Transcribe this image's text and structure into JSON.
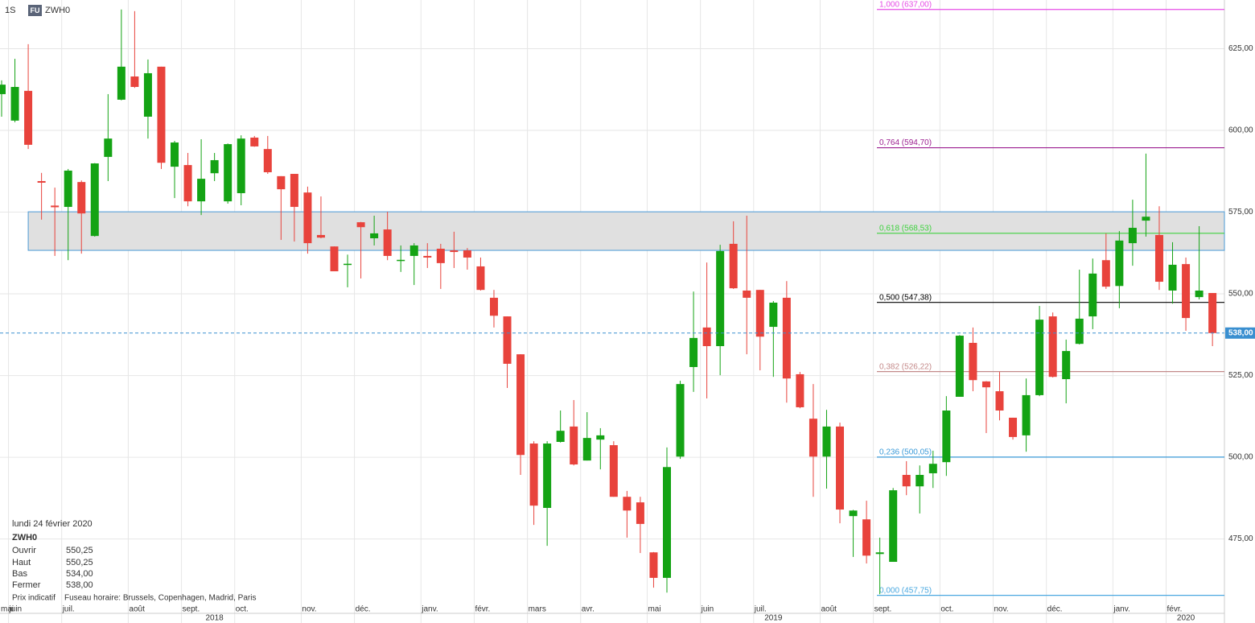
{
  "header": {
    "period": "1S",
    "badge": "FU",
    "symbol": "ZWH0"
  },
  "info": {
    "date": "lundi 24 février 2020",
    "symbol": "ZWH0",
    "rows": [
      [
        "Ouvrir",
        "550,25"
      ],
      [
        "Haut",
        "550,25"
      ],
      [
        "Bas",
        "534,00"
      ],
      [
        "Fermer",
        "538,00"
      ]
    ],
    "note": "Prix indicatif",
    "timezone": "Fuseau horaire: Brussels, Copenhagen, Madrid, Paris"
  },
  "chart_data": {
    "type": "candlestick",
    "categories": [
      "mai",
      "juin",
      null,
      null,
      null,
      "juil.",
      null,
      null,
      null,
      null,
      "août",
      null,
      null,
      null,
      "sept.",
      null,
      null,
      null,
      "oct.",
      null,
      null,
      null,
      null,
      "nov.",
      null,
      null,
      null,
      "déc.",
      null,
      null,
      null,
      null,
      "janv.",
      null,
      null,
      null,
      "févr.",
      null,
      null,
      null,
      "mars",
      null,
      null,
      null,
      "avr.",
      null,
      null,
      null,
      null,
      "mai",
      null,
      null,
      null,
      "juin",
      null,
      null,
      null,
      "juil.",
      null,
      null,
      null,
      null,
      "août",
      null,
      null,
      null,
      "sept.",
      null,
      null,
      null,
      null,
      "oct.",
      null,
      null,
      null,
      "nov.",
      null,
      null,
      null,
      "déc.",
      null,
      null,
      null,
      null,
      "janv.",
      null,
      null,
      null,
      "févr.",
      null,
      null,
      null
    ],
    "year_ticks": [
      {
        "value": 16,
        "label": "2018"
      },
      {
        "value": 58,
        "label": "2019"
      },
      {
        "value": 89,
        "label": "2020"
      }
    ],
    "open": [
      611.1,
      603,
      612.1,
      584.5,
      577,
      576.6,
      584.2,
      567.7,
      591.9,
      609.4,
      616.5,
      604.2,
      619.5,
      588.9,
      589.4,
      578.3,
      586.9,
      578.3,
      580.8,
      597.8,
      594.3,
      586,
      586.7,
      581,
      568,
      564.5,
      559,
      571.9,
      567,
      569.7,
      560.2,
      561.6,
      561.6,
      563.8,
      563.3,
      563.3,
      558.4,
      548.8,
      543.1,
      531.5,
      504.2,
      484.5,
      504.7,
      509.4,
      499,
      505.4,
      503.7,
      487.9,
      486.2,
      470.9,
      463.1,
      500.2,
      527.6,
      539.7,
      534,
      565.3,
      551,
      551.2,
      539.9,
      548.8,
      525.4,
      511.8,
      500.2,
      509.4,
      482,
      481,
      470.4,
      468,
      494.6,
      491.1,
      495.1,
      498.5,
      518.5,
      535,
      523.2,
      520.2,
      512.1,
      506.7,
      519,
      543.1,
      523.9,
      534.7,
      543.1,
      560.3,
      552.4,
      565.5,
      572.4,
      568,
      551,
      559.1,
      549,
      550.25
    ],
    "high": [
      615.3,
      621.9,
      626.4,
      587,
      582.5,
      588.2,
      584.7,
      590,
      611.1,
      637,
      636.5,
      621.7,
      619.5,
      596.8,
      593.1,
      597.3,
      593.1,
      596,
      598.5,
      598.3,
      598.3,
      586,
      586.7,
      582.8,
      579.8,
      564.5,
      562,
      572,
      573.9,
      575.1,
      564.8,
      565.5,
      565.5,
      565.3,
      569,
      564,
      561.1,
      551.2,
      543.1,
      531.5,
      504.9,
      504.9,
      514.3,
      517.5,
      513.8,
      508.9,
      504.9,
      489.7,
      487.9,
      471,
      503,
      523.4,
      550.7,
      559.6,
      565,
      572.2,
      573.9,
      551.2,
      547.8,
      553.9,
      526.1,
      522.4,
      514.5,
      510.6,
      483.9,
      486.7,
      475.4,
      490.6,
      498.8,
      497.5,
      502,
      518.7,
      537.4,
      539.7,
      523.3,
      526.1,
      512.1,
      524.1,
      546.3,
      544.3,
      536,
      557.4,
      560.8,
      568.5,
      569.2,
      578.8,
      592.9,
      576.8,
      565.8,
      561.1,
      570.7,
      550.25
    ],
    "low": [
      604.2,
      602.5,
      594.3,
      572.7,
      561.6,
      560.3,
      562.3,
      567.5,
      584.5,
      609.2,
      613,
      597.5,
      588.2,
      579.3,
      576.8,
      574.1,
      584.5,
      577.6,
      577.1,
      595,
      586.7,
      566.5,
      566,
      562.3,
      567,
      556.9,
      552,
      554.7,
      564.8,
      560.3,
      556.7,
      552.7,
      557.9,
      551.5,
      557.9,
      557.4,
      551,
      539.7,
      521.2,
      494.6,
      479.3,
      472.9,
      504.5,
      497.5,
      499,
      496.3,
      487.9,
      475.4,
      470.7,
      460.1,
      458.6,
      499.5,
      520,
      518,
      525.1,
      551.5,
      531.5,
      526.6,
      524.6,
      516.7,
      515,
      487.9,
      490.4,
      479.8,
      469.5,
      467.5,
      458.1,
      468,
      488.4,
      482.8,
      490.6,
      494.3,
      518.5,
      520.2,
      507.4,
      511.3,
      505.4,
      501.7,
      518.7,
      524.4,
      516.5,
      534.5,
      539.2,
      551.5,
      545.6,
      558.6,
      567.5,
      551.2,
      547,
      538.7,
      548.3,
      534
    ],
    "close": [
      614,
      613.3,
      595.6,
      584,
      576.5,
      587.7,
      574.6,
      589.9,
      597.5,
      619.5,
      613.3,
      617.5,
      590.1,
      596.3,
      578.3,
      585.2,
      590.9,
      595.8,
      597.5,
      595.1,
      587.2,
      582,
      576.6,
      565.5,
      567.2,
      556.9,
      559.2,
      570.4,
      568.5,
      561.6,
      560.4,
      564.8,
      561.1,
      559.4,
      562.8,
      561.1,
      551.2,
      543.3,
      528.6,
      500.7,
      485.2,
      504.2,
      508.1,
      497.8,
      505.9,
      506.7,
      487.9,
      483.7,
      479.6,
      463.1,
      497,
      522.4,
      536.5,
      534,
      563.1,
      551.7,
      548.8,
      536.9,
      547.3,
      524.1,
      515.3,
      500.2,
      509.4,
      484,
      483.7,
      469.9,
      470.9,
      489.9,
      491.1,
      494.6,
      498,
      514.3,
      537.2,
      523.6,
      521.4,
      514.3,
      506.2,
      519,
      542.1,
      524.6,
      532.5,
      542.4,
      556.2,
      552.2,
      566.3,
      570.2,
      573.6,
      553.7,
      558.9,
      542.6,
      551,
      538
    ],
    "up_color": "#14a314",
    "down_color": "#e8433c",
    "ylim": [
      455.2,
      639.9
    ],
    "yticks": [
      {
        "value": 475,
        "label": "475,00"
      },
      {
        "value": 500,
        "label": "500,00"
      },
      {
        "value": 525,
        "label": "525,00"
      },
      {
        "value": 550,
        "label": "550,00"
      },
      {
        "value": 575,
        "label": "575,00"
      },
      {
        "value": 600,
        "label": "600,00"
      },
      {
        "value": 625,
        "label": "625,00"
      }
    ],
    "grid": true,
    "zone": {
      "x_start": 2,
      "low": 563.3,
      "high": 575.1,
      "color": "#e0e0e0",
      "border": "#4a9ad6"
    },
    "fib_levels": [
      {
        "label": "1,000 (637,00)",
        "value": 637,
        "color": "#e64ce6"
      },
      {
        "label": "0,764 (594,70)",
        "value": 594.7,
        "color": "#9c1f90"
      },
      {
        "label": "0,618 (568,53)",
        "value": 568.53,
        "color": "#3fd23f"
      },
      {
        "label": "0,500 (547,38)",
        "value": 547.38,
        "color": "#000000"
      },
      {
        "label": "0,382 (526,22)",
        "value": 526.22,
        "color": "#c48a8a"
      },
      {
        "label": "0,236 (500,05)",
        "value": 500.05,
        "color": "#3a9ad9"
      },
      {
        "label": "0,000 (457,75)",
        "value": 457.75,
        "color": "#4aa8e0"
      }
    ],
    "last_price": {
      "value": 538,
      "label": "538,00",
      "color": "#3a8fd0"
    }
  }
}
